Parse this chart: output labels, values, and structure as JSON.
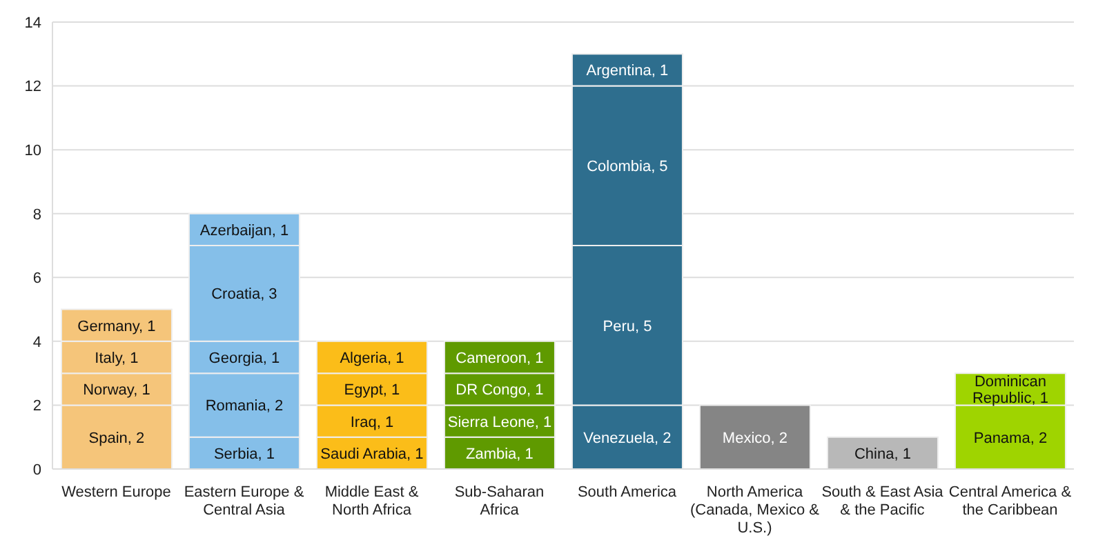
{
  "chart_data": {
    "type": "bar",
    "stacked": true,
    "categories": [
      "Western Europe",
      "Eastern Europe & Central Asia",
      "Middle East & North Africa",
      "Sub-Saharan Africa",
      "South America",
      "North America (Canada, Mexico & U.S.)",
      "South & East Asia & the Pacific",
      "Central America & the Caribbean"
    ],
    "series": [
      {
        "colors": [
          "#f5c57a",
          "#85bfe9",
          "#fbbd19",
          "#5f9a00",
          "#2e6e8e",
          "#858585",
          "#b8b8b8",
          "#9fd400"
        ],
        "values": [
          2,
          1,
          1,
          1,
          2,
          2,
          1,
          2
        ],
        "value_labels": [
          "Spain, 2",
          "Serbia, 1",
          "Saudi Arabia, 1",
          "Zambia, 1",
          "Venezuela, 2",
          "Mexico, 2",
          "China, 1",
          "Panama, 2"
        ]
      },
      {
        "colors": [
          "#f5c57a",
          "#85bfe9",
          "#fbbd19",
          "#5f9a00",
          "#2e6e8e",
          null,
          null,
          "#9fd400"
        ],
        "values": [
          1,
          2,
          1,
          1,
          5,
          null,
          null,
          1
        ],
        "value_labels": [
          "Norway, 1",
          "Romania, 2",
          "Iraq, 1",
          "Sierra Leone, 1",
          "Peru, 5",
          null,
          null,
          "Dominican Republic, 1"
        ]
      },
      {
        "colors": [
          "#f5c57a",
          "#85bfe9",
          "#fbbd19",
          "#5f9a00",
          "#2e6e8e",
          null,
          null,
          null
        ],
        "values": [
          1,
          1,
          1,
          1,
          5,
          null,
          null,
          null
        ],
        "value_labels": [
          "Italy, 1",
          "Georgia, 1",
          "Egypt, 1",
          "DR Congo, 1",
          "Colombia, 5",
          null,
          null,
          null
        ]
      },
      {
        "colors": [
          "#f5c57a",
          "#85bfe9",
          "#fbbd19",
          "#5f9a00",
          "#2e6e8e",
          null,
          null,
          null
        ],
        "values": [
          1,
          3,
          1,
          1,
          1,
          null,
          null,
          null
        ],
        "value_labels": [
          "Germany, 1",
          "Croatia, 3",
          "Algeria, 1",
          "Cameroon, 1",
          "Argentina, 1",
          null,
          null,
          null
        ]
      },
      {
        "colors": [
          null,
          "#85bfe9",
          null,
          null,
          null,
          null,
          null,
          null
        ],
        "values": [
          null,
          1,
          null,
          null,
          null,
          null,
          null,
          null
        ],
        "value_labels": [
          null,
          "Azerbaijan, 1",
          null,
          null,
          null,
          null,
          null,
          null
        ]
      }
    ],
    "ylim": [
      0,
      14
    ],
    "yticks": [
      0,
      2,
      4,
      6,
      8,
      10,
      12,
      14
    ],
    "grid": "y",
    "legend": false
  }
}
